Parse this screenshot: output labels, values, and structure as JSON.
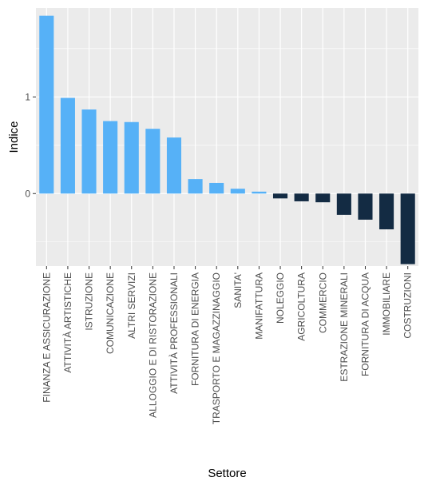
{
  "chart_data": {
    "type": "bar",
    "xlabel": "Settore",
    "ylabel": "Indice",
    "ylim": [
      -0.75,
      1.92
    ],
    "yticks": [
      0,
      1
    ],
    "grid": true,
    "legend": "none",
    "panel_background": "#ebebeb",
    "gridline_color": "#ffffff",
    "positive_color": "#56b1f7",
    "negative_color": "#132b43",
    "categories": [
      "FINANZA E ASSICURAZIONE",
      "ATTIVITÀ ARTISTICHE",
      "ISTRUZIONE",
      "COMUNICAZIONE",
      "ALTRI SERVIZI",
      "ALLOGGIO E DI RISTORAZIONE",
      "ATTIVITÀ PROFESSIONALI",
      "FORNITURA DI ENERGIA",
      "TRASPORTO E MAGAZZINAGGIO",
      "SANITA'",
      "MANIFATTURA",
      "NOLEGGIO",
      "AGRICOLTURA",
      "COMMERCIO",
      "ESTRAZIONE MINERALI",
      "FORNITURA DI ACQUA",
      "IMMOBILIARE",
      "COSTRUZIONI"
    ],
    "values": [
      1.84,
      0.99,
      0.87,
      0.75,
      0.74,
      0.67,
      0.58,
      0.15,
      0.11,
      0.05,
      0.02,
      -0.05,
      -0.08,
      -0.09,
      -0.22,
      -0.27,
      -0.37,
      -0.73
    ]
  }
}
